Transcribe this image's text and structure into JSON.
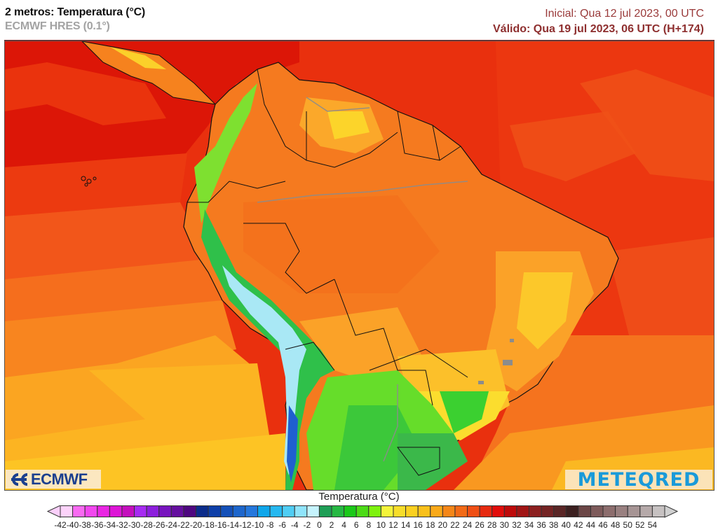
{
  "header": {
    "title": "2 metros: Temperatura (°C)",
    "model": "ECMWF HRES (0.1°)",
    "initial": "Inicial: Qua 12 jul 2023, 00 UTC",
    "valid": "Válido: Qua 19 jul 2023, 06 UTC (H+174)"
  },
  "map": {
    "region": "South America",
    "variable": "2 m temperature",
    "units": "°C",
    "forecast_hour": "H+174",
    "colors": {
      "ocean_north_hot": "#e01a08",
      "ocean_warm": "#f0400f",
      "ocean_mid": "#f5701c",
      "ocean_cool": "#fb9a20",
      "ocean_south": "#fcc320",
      "land_hot": "#f5791f",
      "land_warm": "#fba82a",
      "land_mild": "#fcd42a",
      "land_cool_green": "#62e02a",
      "land_cold_green": "#1fb04a",
      "andes_ice": "#b9ecff",
      "andes_blue": "#1f6ad8",
      "borders": "#111111",
      "rivers": "#8c8c8c"
    }
  },
  "logos": {
    "left": "ECMWF",
    "right": "METEQRED"
  },
  "legend": {
    "title": "Temperatura (°C)",
    "labels": [
      "-42",
      "-40",
      "-38",
      "-36",
      "-34",
      "-32",
      "-30",
      "-28",
      "-26",
      "-24",
      "-22",
      "-20",
      "-18",
      "-16",
      "-14",
      "-12",
      "-10",
      "-8",
      "-6",
      "-4",
      "-2",
      "0",
      "2",
      "4",
      "6",
      "8",
      "10",
      "12",
      "14",
      "16",
      "18",
      "20",
      "22",
      "24",
      "26",
      "28",
      "30",
      "32",
      "34",
      "36",
      "38",
      "40",
      "42",
      "44",
      "46",
      "48",
      "50",
      "52",
      "54"
    ],
    "under_color": "#fbd0fb",
    "over_color": "#d0d0d0",
    "swatches": [
      "#fcd3fa",
      "#f86af2",
      "#f247ef",
      "#e926e3",
      "#dd15d6",
      "#c40fbd",
      "#a62bf2",
      "#8c1fdc",
      "#7714be",
      "#650f9f",
      "#4e0780",
      "#0c2c8a",
      "#0e3fa8",
      "#1450b8",
      "#1d66cc",
      "#2577dc",
      "#0fa6ea",
      "#26b8f0",
      "#4fcdf4",
      "#8fe4fb",
      "#c5f3fd",
      "#1f9e56",
      "#26b843",
      "#1bc819",
      "#4cda17",
      "#7ef20f",
      "#f4f43b",
      "#f7dd2a",
      "#fbd020",
      "#f9c01b",
      "#f9a919",
      "#f48618",
      "#f26a17",
      "#ef4f15",
      "#e62a10",
      "#e10d0b",
      "#bd0a0a",
      "#a01515",
      "#8c2020",
      "#742424",
      "#5a2626",
      "#3c2020",
      "#6b4646",
      "#7d5a5a",
      "#8c6d6d",
      "#998080",
      "#a69494",
      "#b5a9a9",
      "#c6c1c1"
    ]
  }
}
